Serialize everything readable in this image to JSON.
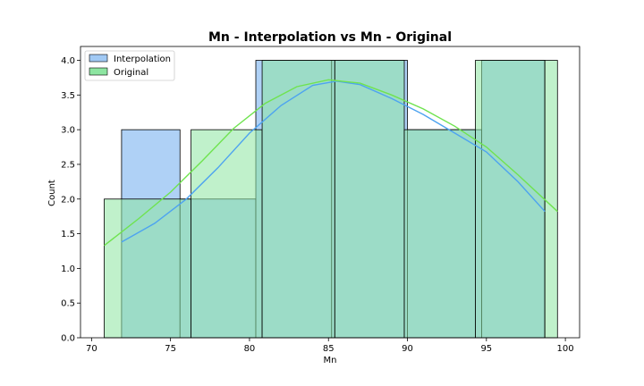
{
  "chart_data": {
    "type": "histogram",
    "title": "Mn - Interpolation vs Mn - Original",
    "xlabel": "Mn",
    "ylabel": "Count",
    "xlim": [
      69.3,
      100.9
    ],
    "ylim": [
      0,
      4.2
    ],
    "xticks": [
      70,
      75,
      80,
      85,
      90,
      95,
      100
    ],
    "yticks": [
      0.0,
      0.5,
      1.0,
      1.5,
      2.0,
      2.5,
      3.0,
      3.5,
      4.0
    ],
    "xtick_labels": [
      "70",
      "75",
      "80",
      "85",
      "90",
      "95",
      "100"
    ],
    "ytick_labels": [
      "0.0",
      "0.5",
      "1.0",
      "1.5",
      "2.0",
      "2.5",
      "3.0",
      "3.5",
      "4.0"
    ],
    "legend_position": "top-left",
    "series": [
      {
        "name": "Interpolation",
        "color": "#a1c9f4",
        "line_color": "#4da3f0",
        "bin_edges": [
          71.9,
          75.6,
          80.4,
          85.2,
          90.0,
          94.7,
          98.7
        ],
        "counts": [
          3,
          2,
          4,
          4,
          3,
          4
        ],
        "kde": [
          [
            71.9,
            1.38
          ],
          [
            74,
            1.65
          ],
          [
            76,
            2.0
          ],
          [
            78,
            2.45
          ],
          [
            80,
            2.95
          ],
          [
            82,
            3.35
          ],
          [
            84,
            3.64
          ],
          [
            85.5,
            3.7
          ],
          [
            87,
            3.65
          ],
          [
            89,
            3.45
          ],
          [
            91,
            3.22
          ],
          [
            93,
            2.95
          ],
          [
            95,
            2.68
          ],
          [
            97,
            2.25
          ],
          [
            98.7,
            1.82
          ]
        ]
      },
      {
        "name": "Original",
        "color": "#8de5a1",
        "line_color": "#6fe34f",
        "bin_edges": [
          70.8,
          76.3,
          80.8,
          85.4,
          89.8,
          94.3,
          98.7,
          99.5
        ],
        "counts": [
          2,
          3,
          4,
          4,
          3,
          4,
          4
        ],
        "kde": [
          [
            70.8,
            1.33
          ],
          [
            73,
            1.72
          ],
          [
            75,
            2.1
          ],
          [
            77,
            2.55
          ],
          [
            79,
            3.02
          ],
          [
            81,
            3.38
          ],
          [
            83,
            3.62
          ],
          [
            85,
            3.72
          ],
          [
            87,
            3.67
          ],
          [
            89,
            3.5
          ],
          [
            91,
            3.3
          ],
          [
            93,
            3.05
          ],
          [
            95,
            2.75
          ],
          [
            97,
            2.35
          ],
          [
            99.5,
            1.82
          ]
        ]
      }
    ]
  }
}
